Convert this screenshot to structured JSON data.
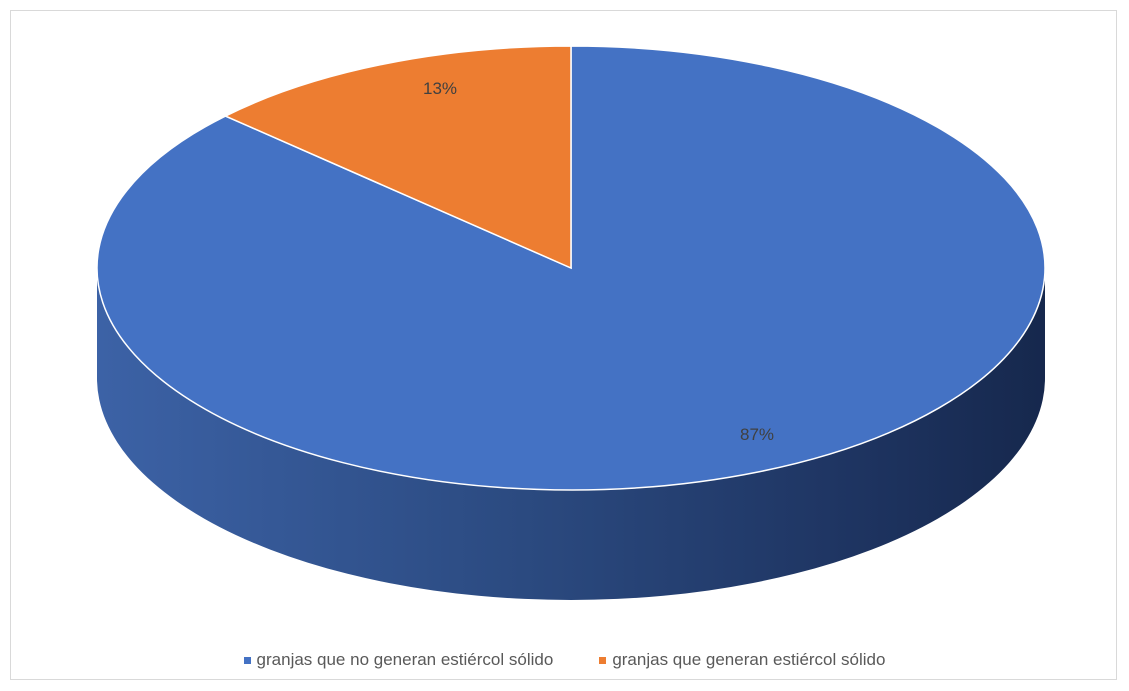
{
  "chart_data": {
    "type": "pie",
    "style": "3d",
    "title": "",
    "series": [
      {
        "values": [
          87,
          13
        ],
        "labels": [
          "granjas que no generan estiércol sólido",
          "granjas que generan estiércol sólido"
        ],
        "data_labels": [
          "87%",
          "13%"
        ],
        "colors": [
          "#4472C4",
          "#ED7D31"
        ]
      }
    ],
    "legend_position": "bottom"
  },
  "legend": {
    "items": [
      {
        "label": "granjas que no generan estiércol sólido",
        "color": "#4472C4"
      },
      {
        "label": "granjas que generan estiércol sólido",
        "color": "#ED7D31"
      }
    ]
  },
  "data_labels": {
    "slice_0": "87%",
    "slice_1": "13%"
  }
}
